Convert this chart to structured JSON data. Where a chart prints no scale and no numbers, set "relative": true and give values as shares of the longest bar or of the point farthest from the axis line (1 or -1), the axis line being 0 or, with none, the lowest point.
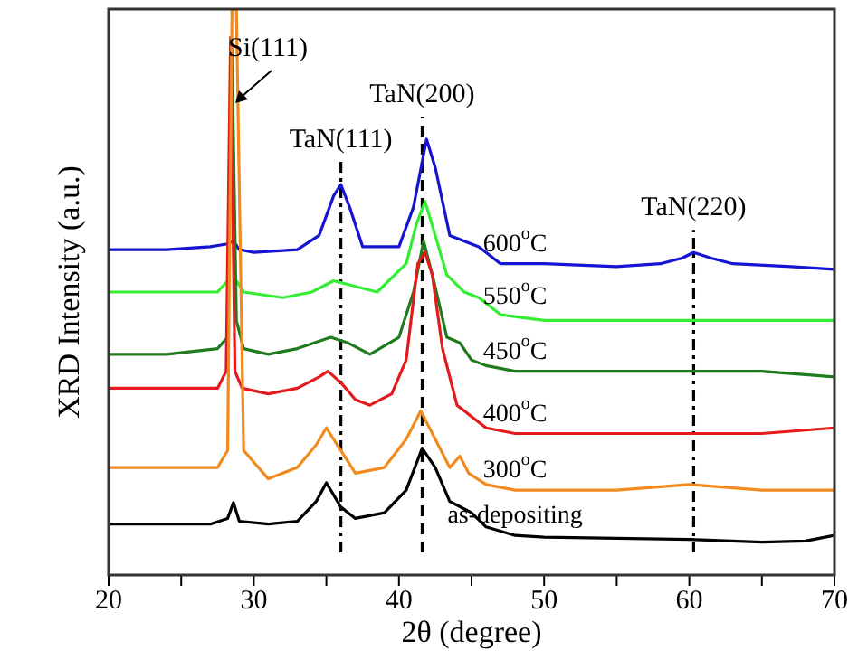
{
  "chart_data": {
    "type": "line",
    "relative": true,
    "xlabel": "2θ (degree)",
    "ylabel": "XRD Intensity (a.u.)",
    "xlim": [
      20,
      70
    ],
    "xticks": [
      20,
      {
        "value": 25,
        "label": null
      },
      30,
      {
        "value": 35,
        "label": null
      },
      40,
      {
        "value": 45,
        "label": null
      },
      50,
      {
        "value": 55,
        "label": null
      },
      60,
      {
        "value": 65,
        "label": null
      },
      70
    ],
    "marker": "none",
    "line_style": "solid",
    "series": [
      {
        "name": "as-depositing",
        "color": "#000000",
        "x": [
          20,
          24,
          27,
          28.2,
          28.6,
          29,
          31,
          33,
          34.3,
          35,
          36,
          37,
          39,
          40.5,
          41.6,
          42.5,
          43.5,
          45,
          46,
          48,
          50,
          55,
          60,
          65,
          68,
          70
        ],
        "values": [
          0.09,
          0.09,
          0.09,
          0.1,
          0.128,
          0.095,
          0.09,
          0.095,
          0.13,
          0.163,
          0.12,
          0.1,
          0.11,
          0.15,
          0.224,
          0.19,
          0.13,
          0.11,
          0.085,
          0.07,
          0.067,
          0.065,
          0.063,
          0.058,
          0.06,
          0.07
        ]
      },
      {
        "name": "600$^{o}$C",
        "color": "#1414d2",
        "x": [
          20,
          24,
          27,
          28.2,
          28.6,
          29,
          30,
          33,
          34.5,
          35.5,
          36,
          36.6,
          37.5,
          40,
          41,
          41.9,
          42.5,
          43.5,
          44.5,
          45.5,
          47,
          50,
          55,
          58,
          59.5,
          60.3,
          61.5,
          63,
          67,
          70
        ],
        "values": [
          0.575,
          0.575,
          0.58,
          0.585,
          0.59,
          0.575,
          0.57,
          0.575,
          0.6,
          0.67,
          0.69,
          0.65,
          0.58,
          0.58,
          0.65,
          0.77,
          0.72,
          0.6,
          0.59,
          0.58,
          0.55,
          0.55,
          0.545,
          0.55,
          0.56,
          0.57,
          0.56,
          0.55,
          0.545,
          0.54
        ]
      },
      {
        "name": "550$^{o}$C",
        "color": "#33ee33",
        "x": [
          20,
          24,
          27.5,
          28.2,
          28.5,
          28.8,
          29.3,
          32,
          34,
          35.5,
          37,
          38.5,
          40.5,
          41.2,
          41.8,
          42.5,
          43.3,
          44.5,
          45.5,
          47,
          50,
          55,
          60,
          65,
          70
        ],
        "values": [
          0.5,
          0.5,
          0.5,
          0.52,
          null,
          0.52,
          0.5,
          0.49,
          0.5,
          0.52,
          0.51,
          0.5,
          0.55,
          0.62,
          0.66,
          0.6,
          0.53,
          0.5,
          0.49,
          0.46,
          0.45,
          0.45,
          0.45,
          0.45,
          0.45
        ]
      },
      {
        "name": "450$^{o}$C",
        "color": "#1e7b1e",
        "x": [
          20,
          24,
          27.5,
          28.2,
          28.5,
          28.8,
          29.3,
          31,
          33,
          35.3,
          36.5,
          38,
          40,
          41,
          41.7,
          42.4,
          43.3,
          44.2,
          45,
          46,
          48,
          50,
          55,
          60,
          65,
          70
        ],
        "values": [
          0.39,
          0.39,
          0.4,
          0.42,
          0.93,
          0.45,
          0.4,
          0.39,
          0.4,
          0.42,
          0.41,
          0.39,
          0.42,
          0.5,
          0.59,
          0.52,
          0.42,
          0.41,
          0.38,
          0.37,
          0.36,
          0.36,
          0.36,
          0.36,
          0.36,
          0.35
        ]
      },
      {
        "name": "400$^{o}$C",
        "color": "#e41a1c",
        "x": [
          20,
          24,
          27.5,
          28.1,
          28.4,
          28.7,
          29.2,
          31,
          33,
          34.5,
          35.1,
          36,
          37,
          38,
          39.5,
          40.5,
          41.3,
          41.8,
          42.3,
          43,
          44,
          45,
          46,
          48,
          50,
          55,
          60,
          65,
          70
        ],
        "values": [
          0.33,
          0.33,
          0.33,
          0.36,
          0.95,
          0.36,
          0.33,
          0.32,
          0.33,
          0.35,
          0.36,
          0.34,
          0.31,
          0.3,
          0.32,
          0.38,
          0.55,
          0.57,
          0.53,
          0.4,
          0.3,
          0.28,
          0.26,
          0.25,
          0.25,
          0.25,
          0.25,
          0.25,
          0.26
        ]
      },
      {
        "name": "300$^{o}$C",
        "color": "#f28a1e",
        "x": [
          20,
          24,
          27.5,
          28.2,
          28.5,
          28.8,
          29.3,
          31,
          33,
          34.3,
          35,
          36,
          37,
          39,
          40.5,
          41.5,
          42.5,
          43.5,
          44.2,
          44.8,
          46,
          48,
          50,
          55,
          60,
          65,
          70
        ],
        "values": [
          0.19,
          0.19,
          0.19,
          0.22,
          1,
          1,
          0.22,
          0.17,
          0.19,
          0.23,
          0.26,
          0.22,
          0.18,
          0.19,
          0.24,
          0.29,
          0.24,
          0.19,
          0.21,
          0.18,
          0.16,
          0.15,
          0.15,
          0.15,
          0.16,
          0.15,
          0.15
        ]
      }
    ],
    "ref_lines": [
      {
        "axis": "x",
        "value": 36,
        "line_style": "dotted",
        "color": "#000000",
        "label": "TaN(111)"
      },
      {
        "axis": "x",
        "value": 41.6,
        "line_style": "dashed",
        "color": "#000000",
        "label": "TaN(200)"
      },
      {
        "axis": "x",
        "value": 60.3,
        "line_style": "dotted",
        "color": "#000000",
        "label": "TaN(220)"
      }
    ],
    "annotations": [
      "Si(111)"
    ]
  }
}
